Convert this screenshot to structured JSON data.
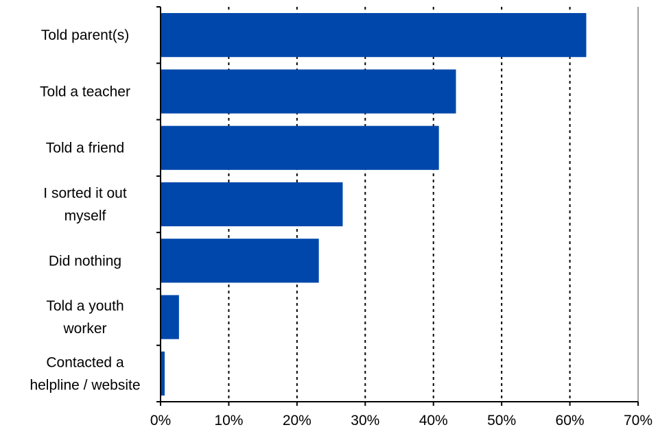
{
  "chart_data": {
    "type": "bar",
    "orientation": "horizontal",
    "categories": [
      [
        "Told parent(s)"
      ],
      [
        "Told a teacher"
      ],
      [
        "Told a friend"
      ],
      [
        "I sorted it out",
        "myself"
      ],
      [
        "Did nothing"
      ],
      [
        "Told a youth",
        "worker"
      ],
      [
        "Contacted a",
        "helpline / website"
      ]
    ],
    "values": [
      62.4,
      43.3,
      40.8,
      26.7,
      23.2,
      2.7,
      0.6
    ],
    "unit": "%",
    "xlim": [
      0,
      70
    ],
    "xticks": [
      "0%",
      "10%",
      "20%",
      "30%",
      "40%",
      "50%",
      "60%",
      "70%"
    ],
    "xtick_values": [
      0,
      10,
      20,
      30,
      40,
      50,
      60,
      70
    ],
    "grid": "vertical dotted",
    "bar_color": "#0047AB",
    "title": "",
    "xlabel": "",
    "ylabel": ""
  }
}
